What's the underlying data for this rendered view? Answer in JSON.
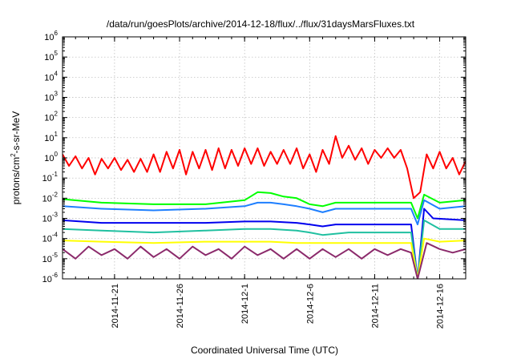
{
  "chart_data": {
    "type": "line",
    "title": "/data/run/goesPlots/archive/2014-12-18/flux/../flux/31daysMarsFluxes.txt",
    "xlabel": "Coordinated Universal Time (UTC)",
    "ylabel": "protons/cm2-s-sr-MeV",
    "y_scale": "log",
    "ylim": [
      1e-06,
      1000000.0
    ],
    "xlim": [
      "2014-11-17",
      "2014-12-18"
    ],
    "grid": true,
    "y_ticks": [
      {
        "mant": "10",
        "exp": "-6",
        "value": 1e-06
      },
      {
        "mant": "10",
        "exp": "-5",
        "value": 1e-05
      },
      {
        "mant": "10",
        "exp": "-4",
        "value": 0.0001
      },
      {
        "mant": "10",
        "exp": "-3",
        "value": 0.001
      },
      {
        "mant": "10",
        "exp": "-2",
        "value": 0.01
      },
      {
        "mant": "10",
        "exp": "-1",
        "value": 0.1
      },
      {
        "mant": "10",
        "exp": "0",
        "value": 1
      },
      {
        "mant": "10",
        "exp": "1",
        "value": 10
      },
      {
        "mant": "10",
        "exp": "2",
        "value": 100
      },
      {
        "mant": "10",
        "exp": "3",
        "value": 1000
      },
      {
        "mant": "10",
        "exp": "4",
        "value": 10000
      },
      {
        "mant": "10",
        "exp": "5",
        "value": 100000
      },
      {
        "mant": "10",
        "exp": "6",
        "value": 1000000
      }
    ],
    "x_ticks": [
      "2014-11-21",
      "2014-11-26",
      "2014-12-1",
      "2014-12-6",
      "2014-12-11",
      "2014-12-16"
    ],
    "series": [
      {
        "color": "#ff0000",
        "points": [
          [
            "2014-11-17",
            1.5
          ],
          [
            "2014-11-17.5",
            0.4
          ],
          [
            "2014-11-18",
            1.2
          ],
          [
            "2014-11-18.5",
            0.3
          ],
          [
            "2014-11-19",
            1.0
          ],
          [
            "2014-11-19.5",
            0.15
          ],
          [
            "2014-11-20",
            0.9
          ],
          [
            "2014-11-20.5",
            0.3
          ],
          [
            "2014-11-21",
            1.0
          ],
          [
            "2014-11-21.5",
            0.25
          ],
          [
            "2014-11-22",
            0.8
          ],
          [
            "2014-11-22.5",
            0.2
          ],
          [
            "2014-11-23",
            0.9
          ],
          [
            "2014-11-23.5",
            0.2
          ],
          [
            "2014-11-24",
            1.5
          ],
          [
            "2014-11-24.5",
            0.2
          ],
          [
            "2014-11-25",
            2.0
          ],
          [
            "2014-11-25.5",
            0.3
          ],
          [
            "2014-11-26",
            2.5
          ],
          [
            "2014-11-26.5",
            0.15
          ],
          [
            "2014-11-27",
            2.0
          ],
          [
            "2014-11-27.5",
            0.3
          ],
          [
            "2014-11-28",
            2.5
          ],
          [
            "2014-11-28.5",
            0.25
          ],
          [
            "2014-11-29",
            3.0
          ],
          [
            "2014-11-29.5",
            0.3
          ],
          [
            "2014-11-30",
            2.5
          ],
          [
            "2014-11-30.5",
            0.4
          ],
          [
            "2014-12-1",
            3.0
          ],
          [
            "2014-12-1.5",
            0.5
          ],
          [
            "2014-12-2",
            3.0
          ],
          [
            "2014-12-2.5",
            0.4
          ],
          [
            "2014-12-3",
            2.0
          ],
          [
            "2014-12-3.5",
            0.5
          ],
          [
            "2014-12-4",
            2.5
          ],
          [
            "2014-12-4.5",
            0.5
          ],
          [
            "2014-12-5",
            3.0
          ],
          [
            "2014-12-5.5",
            0.3
          ],
          [
            "2014-12-6",
            1.5
          ],
          [
            "2014-12-6.5",
            0.2
          ],
          [
            "2014-12-7",
            2.5
          ],
          [
            "2014-12-7.5",
            0.5
          ],
          [
            "2014-12-8",
            12.0
          ],
          [
            "2014-12-8.5",
            1.0
          ],
          [
            "2014-12-9",
            4.0
          ],
          [
            "2014-12-9.5",
            0.8
          ],
          [
            "2014-12-10",
            3.0
          ],
          [
            "2014-12-10.5",
            0.5
          ],
          [
            "2014-12-11",
            2.5
          ],
          [
            "2014-12-11.5",
            1.0
          ],
          [
            "2014-12-12",
            3.0
          ],
          [
            "2014-12-12.5",
            1.0
          ],
          [
            "2014-12-13",
            2.5
          ],
          [
            "2014-12-13.5",
            0.3
          ],
          [
            "2014-12-14",
            0.01
          ],
          [
            "2014-12-14.5",
            0.02
          ],
          [
            "2014-12-15",
            1.5
          ],
          [
            "2014-12-15.5",
            0.3
          ],
          [
            "2014-12-16",
            2.0
          ],
          [
            "2014-12-16.5",
            0.3
          ],
          [
            "2014-12-17",
            1.0
          ],
          [
            "2014-12-17.5",
            0.15
          ],
          [
            "2014-12-18",
            0.7
          ]
        ]
      },
      {
        "color": "#00ff00",
        "points": [
          [
            "2014-11-17",
            0.009
          ],
          [
            "2014-11-20",
            0.006
          ],
          [
            "2014-11-24",
            0.005
          ],
          [
            "2014-11-28",
            0.005
          ],
          [
            "2014-12-1",
            0.008
          ],
          [
            "2014-12-2",
            0.02
          ],
          [
            "2014-12-3",
            0.018
          ],
          [
            "2014-12-4",
            0.012
          ],
          [
            "2014-12-5",
            0.01
          ],
          [
            "2014-12-6",
            0.005
          ],
          [
            "2014-12-7",
            0.004
          ],
          [
            "2014-12-8",
            0.006
          ],
          [
            "2014-12-10",
            0.006
          ],
          [
            "2014-12-12",
            0.006
          ],
          [
            "2014-12-13.8",
            0.006
          ],
          [
            "2014-12-14.3",
            0.001
          ],
          [
            "2014-12-14.8",
            0.015
          ],
          [
            "2014-12-16",
            0.006
          ],
          [
            "2014-12-18",
            0.008
          ]
        ]
      },
      {
        "color": "#1e7fff",
        "points": [
          [
            "2014-11-17",
            0.004
          ],
          [
            "2014-11-20",
            0.003
          ],
          [
            "2014-11-24",
            0.0025
          ],
          [
            "2014-11-28",
            0.003
          ],
          [
            "2014-12-1",
            0.004
          ],
          [
            "2014-12-2",
            0.006
          ],
          [
            "2014-12-3",
            0.006
          ],
          [
            "2014-12-4",
            0.005
          ],
          [
            "2014-12-5",
            0.004
          ],
          [
            "2014-12-6",
            0.003
          ],
          [
            "2014-12-7",
            0.002
          ],
          [
            "2014-12-8",
            0.003
          ],
          [
            "2014-12-10",
            0.003
          ],
          [
            "2014-12-12",
            0.003
          ],
          [
            "2014-12-13.8",
            0.003
          ],
          [
            "2014-12-14.3",
            0.0005
          ],
          [
            "2014-12-14.8",
            0.008
          ],
          [
            "2014-12-16",
            0.003
          ],
          [
            "2014-12-18",
            0.004
          ]
        ]
      },
      {
        "color": "#0000ee",
        "points": [
          [
            "2014-11-17",
            0.0008
          ],
          [
            "2014-11-20",
            0.0006
          ],
          [
            "2014-11-24",
            0.0006
          ],
          [
            "2014-11-28",
            0.0006
          ],
          [
            "2014-12-1",
            0.0007
          ],
          [
            "2014-12-3",
            0.0007
          ],
          [
            "2014-12-5",
            0.0006
          ],
          [
            "2014-12-6",
            0.0005
          ],
          [
            "2014-12-7",
            0.0004
          ],
          [
            "2014-12-8",
            0.0005
          ],
          [
            "2014-12-10",
            0.0005
          ],
          [
            "2014-12-12",
            0.0005
          ],
          [
            "2014-12-13.8",
            0.0005
          ],
          [
            "2014-12-14.3",
            1e-06
          ],
          [
            "2014-12-14.8",
            0.003
          ],
          [
            "2014-12-15.5",
            0.001
          ],
          [
            "2014-12-18",
            0.0008
          ]
        ]
      },
      {
        "color": "#20c0a0",
        "points": [
          [
            "2014-11-17",
            0.0003
          ],
          [
            "2014-11-20",
            0.00025
          ],
          [
            "2014-11-24",
            0.0002
          ],
          [
            "2014-11-28",
            0.00025
          ],
          [
            "2014-12-1",
            0.0003
          ],
          [
            "2014-12-3",
            0.0003
          ],
          [
            "2014-12-5",
            0.00025
          ],
          [
            "2014-12-6",
            0.0002
          ],
          [
            "2014-12-7",
            0.00015
          ],
          [
            "2014-12-9",
            0.0002
          ],
          [
            "2014-12-12",
            0.0002
          ],
          [
            "2014-12-13.8",
            0.0002
          ],
          [
            "2014-12-14.3",
            1e-06
          ],
          [
            "2014-12-14.8",
            0.0008
          ],
          [
            "2014-12-16",
            0.0003
          ],
          [
            "2014-12-18",
            0.0003
          ]
        ]
      },
      {
        "color": "#ffff00",
        "points": [
          [
            "2014-11-17",
            8e-05
          ],
          [
            "2014-11-20",
            7e-05
          ],
          [
            "2014-11-24",
            6e-05
          ],
          [
            "2014-11-28",
            7e-05
          ],
          [
            "2014-12-1",
            7e-05
          ],
          [
            "2014-12-3",
            7e-05
          ],
          [
            "2014-12-5",
            6e-05
          ],
          [
            "2014-12-7",
            6e-05
          ],
          [
            "2014-12-9",
            6e-05
          ],
          [
            "2014-12-12",
            6e-05
          ],
          [
            "2014-12-13.8",
            6e-05
          ],
          [
            "2014-12-14.3",
            1e-06
          ],
          [
            "2014-12-14.8",
            0.0001
          ],
          [
            "2014-12-16",
            7e-05
          ],
          [
            "2014-12-18",
            8e-05
          ]
        ]
      },
      {
        "color": "#8b2a6b",
        "points": [
          [
            "2014-11-17",
            3e-05
          ],
          [
            "2014-11-18",
            1e-05
          ],
          [
            "2014-11-19",
            4e-05
          ],
          [
            "2014-11-20",
            1.5e-05
          ],
          [
            "2014-11-21",
            3e-05
          ],
          [
            "2014-11-22",
            1e-05
          ],
          [
            "2014-11-23",
            4e-05
          ],
          [
            "2014-11-24",
            1.2e-05
          ],
          [
            "2014-11-25",
            3e-05
          ],
          [
            "2014-11-26",
            1e-05
          ],
          [
            "2014-11-27",
            4e-05
          ],
          [
            "2014-11-28",
            1.5e-05
          ],
          [
            "2014-11-29",
            3e-05
          ],
          [
            "2014-11-30",
            1e-05
          ],
          [
            "2014-12-1",
            4e-05
          ],
          [
            "2014-12-2",
            1.5e-05
          ],
          [
            "2014-12-3",
            3e-05
          ],
          [
            "2014-12-4",
            1e-05
          ],
          [
            "2014-12-5",
            3e-05
          ],
          [
            "2014-12-6",
            1e-05
          ],
          [
            "2014-12-7",
            3e-05
          ],
          [
            "2014-12-8",
            1.2e-05
          ],
          [
            "2014-12-9",
            3e-05
          ],
          [
            "2014-12-10",
            1e-05
          ],
          [
            "2014-12-11",
            3e-05
          ],
          [
            "2014-12-12",
            1.5e-05
          ],
          [
            "2014-12-13",
            3e-05
          ],
          [
            "2014-12-13.8",
            2e-05
          ],
          [
            "2014-12-14.3",
            1e-06
          ],
          [
            "2014-12-15",
            6e-05
          ],
          [
            "2014-12-16",
            3e-05
          ],
          [
            "2014-12-17",
            2e-05
          ],
          [
            "2014-12-18",
            3e-05
          ]
        ]
      }
    ]
  }
}
